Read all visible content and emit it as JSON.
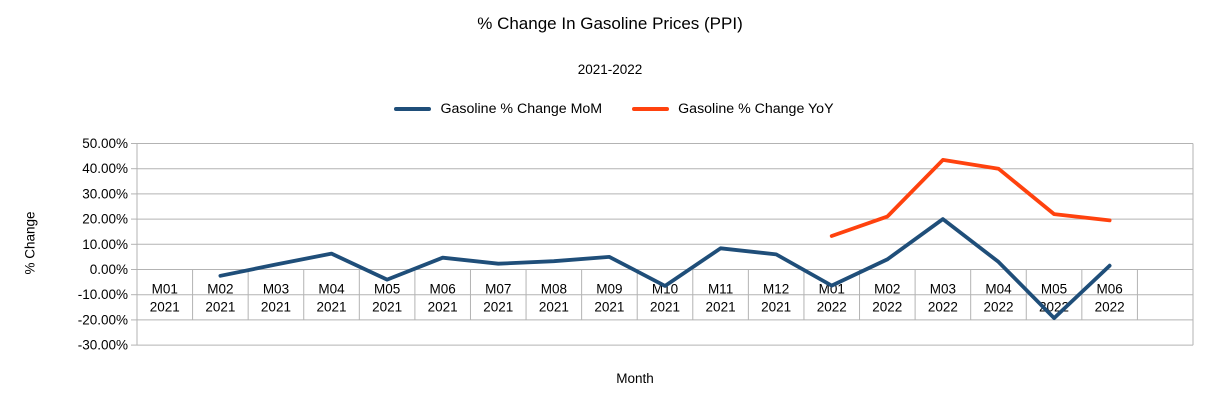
{
  "title": "% Change In Gasoline Prices (PPI)",
  "subtitle": "2021-2022",
  "legend": [
    {
      "label": "Gasoline % Change MoM",
      "color": "#1F4E79"
    },
    {
      "label": "Gasoline % Change YoY",
      "color": "#FF420E"
    }
  ],
  "chart_data": {
    "type": "line",
    "title": "% Change In Gasoline Prices (PPI)",
    "subtitle": "2021-2022",
    "xlabel": "Month",
    "ylabel": "% Change",
    "ylim": [
      -30,
      50
    ],
    "ytick_step": 10,
    "y_ticks": [
      "50.00%",
      "40.00%",
      "30.00%",
      "20.00%",
      "10.00%",
      "0.00%",
      "-10.00%",
      "-20.00%",
      "-30.00%"
    ],
    "grid": true,
    "legend_position": "top",
    "categories": [
      "M01 2021",
      "M02 2021",
      "M03 2021",
      "M04 2021",
      "M05 2021",
      "M06 2021",
      "M07 2021",
      "M08 2021",
      "M09 2021",
      "M10 2021",
      "M11 2021",
      "M12 2021",
      "M01 2022",
      "M02 2022",
      "M03 2022",
      "M04 2022",
      "M05 2022",
      "M06 2022"
    ],
    "series": [
      {
        "name": "Gasoline % Change MoM",
        "color": "#1F4E79",
        "values": [
          null,
          -2.5,
          2.0,
          6.3,
          -4.0,
          4.7,
          2.3,
          3.3,
          5.0,
          -6.5,
          8.4,
          6.0,
          -6.4,
          4.0,
          20.0,
          3.0,
          -19.3,
          1.5
        ]
      },
      {
        "name": "Gasoline % Change YoY",
        "color": "#FF420E",
        "values": [
          null,
          null,
          null,
          null,
          null,
          null,
          null,
          null,
          null,
          null,
          null,
          null,
          13.3,
          21.0,
          43.5,
          40.0,
          22.0,
          19.5
        ]
      }
    ]
  },
  "colors": {
    "mom_line": "#1F4E79",
    "yoy_line": "#FF420E",
    "grid": "#B3B3B3",
    "text": "#000000",
    "background": "#FFFFFF"
  }
}
